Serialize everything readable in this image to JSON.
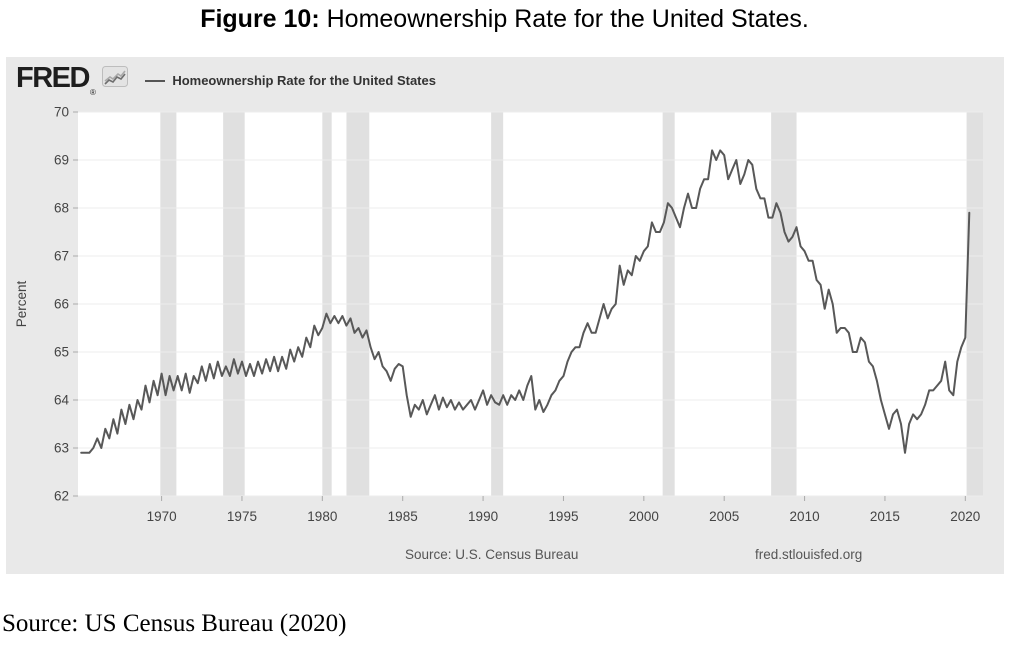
{
  "caption_top": {
    "label": "Figure 10:",
    "text": " Homeownership Rate for the United States."
  },
  "fred": {
    "logo": "FRED",
    "reg": "®",
    "legend": "Homeownership Rate for the United States",
    "footer_source": "Source: U.S. Census Bureau",
    "footer_link": "fred.stlouisfed.org"
  },
  "caption_bottom": "Source: US Census Bureau (2020)",
  "chart_data": {
    "type": "line",
    "title": "Homeownership Rate for the United States",
    "xlabel": "",
    "ylabel": "Percent",
    "frequency": "quarterly",
    "x_start": 1965.0,
    "x_step": 0.25,
    "xlim": [
      1964.8,
      2021.1
    ],
    "ylim": [
      62,
      70
    ],
    "y_ticks": [
      62,
      63,
      64,
      65,
      66,
      67,
      68,
      69,
      70
    ],
    "x_ticks": [
      1970,
      1975,
      1980,
      1985,
      1990,
      1995,
      2000,
      2005,
      2010,
      2015,
      2020
    ],
    "grid": "horizontal",
    "legend_position": "top-left",
    "line_color": "#585858",
    "recession_color": "#e0e0e0",
    "plot_background": "#ffffff",
    "outer_background": "#e9e9e9",
    "recessions": [
      [
        1969.92,
        1970.92
      ],
      [
        1973.83,
        1975.17
      ],
      [
        1980.0,
        1980.58
      ],
      [
        1981.5,
        1982.92
      ],
      [
        1990.5,
        1991.25
      ],
      [
        2001.17,
        2001.92
      ],
      [
        2007.92,
        2009.5
      ],
      [
        2020.08,
        2021.1
      ]
    ],
    "values": [
      62.9,
      62.9,
      62.9,
      63.0,
      63.2,
      63.0,
      63.4,
      63.2,
      63.6,
      63.3,
      63.8,
      63.5,
      63.9,
      63.6,
      64.0,
      63.8,
      64.3,
      63.95,
      64.4,
      64.1,
      64.55,
      64.1,
      64.5,
      64.2,
      64.5,
      64.2,
      64.55,
      64.15,
      64.5,
      64.35,
      64.7,
      64.4,
      64.75,
      64.45,
      64.8,
      64.5,
      64.7,
      64.5,
      64.85,
      64.55,
      64.8,
      64.5,
      64.75,
      64.5,
      64.8,
      64.55,
      64.85,
      64.6,
      64.9,
      64.6,
      64.9,
      64.65,
      65.05,
      64.8,
      65.1,
      64.9,
      65.3,
      65.1,
      65.55,
      65.35,
      65.5,
      65.8,
      65.6,
      65.75,
      65.6,
      65.75,
      65.55,
      65.7,
      65.4,
      65.5,
      65.3,
      65.45,
      65.1,
      64.85,
      65.0,
      64.7,
      64.6,
      64.4,
      64.65,
      64.75,
      64.7,
      64.1,
      63.65,
      63.9,
      63.8,
      64.0,
      63.7,
      63.9,
      64.1,
      63.8,
      64.05,
      63.85,
      64.0,
      63.8,
      63.95,
      63.8,
      63.9,
      64.0,
      63.8,
      64.0,
      64.2,
      63.9,
      64.1,
      63.95,
      63.9,
      64.1,
      63.9,
      64.1,
      64.0,
      64.2,
      64.0,
      64.3,
      64.5,
      63.8,
      64.0,
      63.75,
      63.9,
      64.1,
      64.2,
      64.4,
      64.5,
      64.8,
      65.0,
      65.1,
      65.1,
      65.4,
      65.6,
      65.4,
      65.4,
      65.7,
      66.0,
      65.7,
      65.9,
      66.0,
      66.8,
      66.4,
      66.7,
      66.6,
      67.0,
      66.9,
      67.1,
      67.2,
      67.7,
      67.5,
      67.5,
      67.7,
      68.1,
      68.0,
      67.8,
      67.6,
      68.0,
      68.3,
      68.0,
      68.0,
      68.4,
      68.6,
      68.6,
      69.2,
      69.0,
      69.2,
      69.1,
      68.6,
      68.8,
      69.0,
      68.5,
      68.7,
      69.0,
      68.9,
      68.4,
      68.2,
      68.2,
      67.8,
      67.8,
      68.1,
      67.9,
      67.5,
      67.3,
      67.4,
      67.6,
      67.2,
      67.1,
      66.9,
      66.9,
      66.5,
      66.4,
      65.9,
      66.3,
      66.0,
      65.4,
      65.5,
      65.5,
      65.4,
      65.0,
      65.0,
      65.3,
      65.2,
      64.8,
      64.7,
      64.4,
      64.0,
      63.7,
      63.4,
      63.7,
      63.8,
      63.5,
      62.9,
      63.5,
      63.7,
      63.6,
      63.7,
      63.9,
      64.2,
      64.2,
      64.3,
      64.4,
      64.8,
      64.2,
      64.1,
      64.8,
      65.1,
      65.3,
      67.9
    ]
  }
}
